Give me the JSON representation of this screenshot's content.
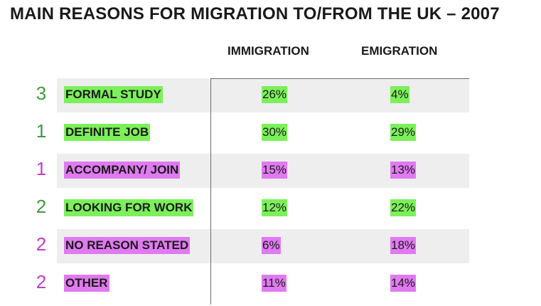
{
  "chart_data": {
    "type": "table",
    "title": "MAIN REASONS FOR MIGRATION TO/FROM THE UK – 2007",
    "columns": [
      "IMMIGRATION",
      "EMIGRATION"
    ],
    "colors": {
      "green_highlight": "#7CF05A",
      "magenta_highlight": "#E07AF0",
      "green_rank": "#3E9A3E",
      "magenta_rank": "#C040C8",
      "row_shade": "#eeeeee"
    },
    "rows": [
      {
        "rank": "3",
        "rank_color": "green",
        "label": "FORMAL STUDY",
        "label_color": "green",
        "immigration": "26%",
        "immigration_color": "green",
        "emigration": "4%",
        "emigration_color": "green"
      },
      {
        "rank": "1",
        "rank_color": "green",
        "label": "DEFINITE JOB",
        "label_color": "green",
        "immigration": "30%",
        "immigration_color": "green",
        "emigration": "29%",
        "emigration_color": "green"
      },
      {
        "rank": "1",
        "rank_color": "magenta",
        "label": "ACCOMPANY/ JOIN",
        "label_color": "magenta",
        "immigration": "15%",
        "immigration_color": "magenta",
        "emigration": "13%",
        "emigration_color": "magenta"
      },
      {
        "rank": "2",
        "rank_color": "green",
        "label": "LOOKING FOR WORK",
        "label_color": "green",
        "immigration": "12%",
        "immigration_color": "green",
        "emigration": "22%",
        "emigration_color": "green"
      },
      {
        "rank": "2",
        "rank_color": "magenta",
        "label": "NO REASON STATED",
        "label_color": "magenta",
        "immigration": "6%",
        "immigration_color": "magenta",
        "emigration": "18%",
        "emigration_color": "magenta"
      },
      {
        "rank": "2",
        "rank_color": "magenta",
        "label": "OTHER",
        "label_color": "magenta",
        "immigration": "11%",
        "immigration_color": "magenta",
        "emigration": "14%",
        "emigration_color": "magenta"
      }
    ]
  }
}
